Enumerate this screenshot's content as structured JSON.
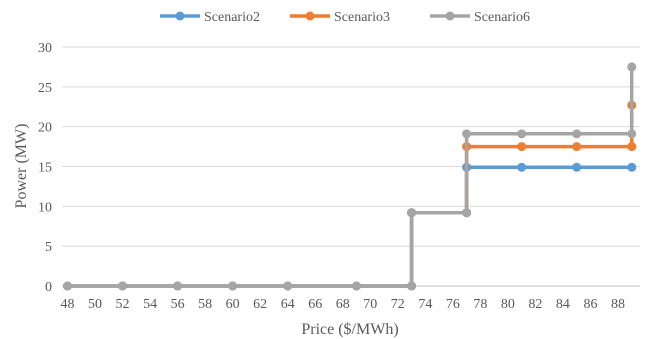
{
  "chart_data": {
    "type": "line",
    "title": "",
    "xlabel": "Price ($/MWh)",
    "ylabel": "Power (MW)",
    "xlim": [
      47.6,
      89.6
    ],
    "ylim": [
      0,
      30
    ],
    "x_ticks": [
      48,
      50,
      52,
      54,
      56,
      58,
      60,
      62,
      64,
      66,
      68,
      70,
      72,
      74,
      76,
      78,
      80,
      82,
      84,
      86,
      88
    ],
    "y_ticks": [
      0,
      5,
      10,
      15,
      20,
      25,
      30
    ],
    "grid": "horizontal",
    "legend_position": "top",
    "step": true,
    "series": [
      {
        "name": "Scenario2",
        "color": "#5b9bd5",
        "points": [
          [
            48,
            0
          ],
          [
            52,
            0
          ],
          [
            56,
            0
          ],
          [
            60,
            0
          ],
          [
            64,
            0
          ],
          [
            69,
            0
          ],
          [
            73,
            0
          ],
          [
            73,
            9.2
          ],
          [
            77,
            9.2
          ],
          [
            77,
            14.9
          ],
          [
            81,
            14.9
          ],
          [
            85,
            14.9
          ],
          [
            89,
            14.9
          ]
        ]
      },
      {
        "name": "Scenario3",
        "color": "#ed7d31",
        "points": [
          [
            48,
            0
          ],
          [
            52,
            0
          ],
          [
            56,
            0
          ],
          [
            60,
            0
          ],
          [
            64,
            0
          ],
          [
            69,
            0
          ],
          [
            73,
            0
          ],
          [
            73,
            9.2
          ],
          [
            77,
            9.2
          ],
          [
            77,
            17.5
          ],
          [
            81,
            17.5
          ],
          [
            85,
            17.5
          ],
          [
            89,
            17.5
          ],
          [
            89,
            22.7
          ]
        ]
      },
      {
        "name": "Scenario6",
        "color": "#a5a5a5",
        "points": [
          [
            48,
            0
          ],
          [
            52,
            0
          ],
          [
            56,
            0
          ],
          [
            60,
            0
          ],
          [
            64,
            0
          ],
          [
            69,
            0
          ],
          [
            73,
            0
          ],
          [
            73,
            9.2
          ],
          [
            77,
            9.2
          ],
          [
            77,
            19.1
          ],
          [
            81,
            19.1
          ],
          [
            85,
            19.1
          ],
          [
            89,
            19.1
          ],
          [
            89,
            27.5
          ]
        ]
      }
    ]
  }
}
